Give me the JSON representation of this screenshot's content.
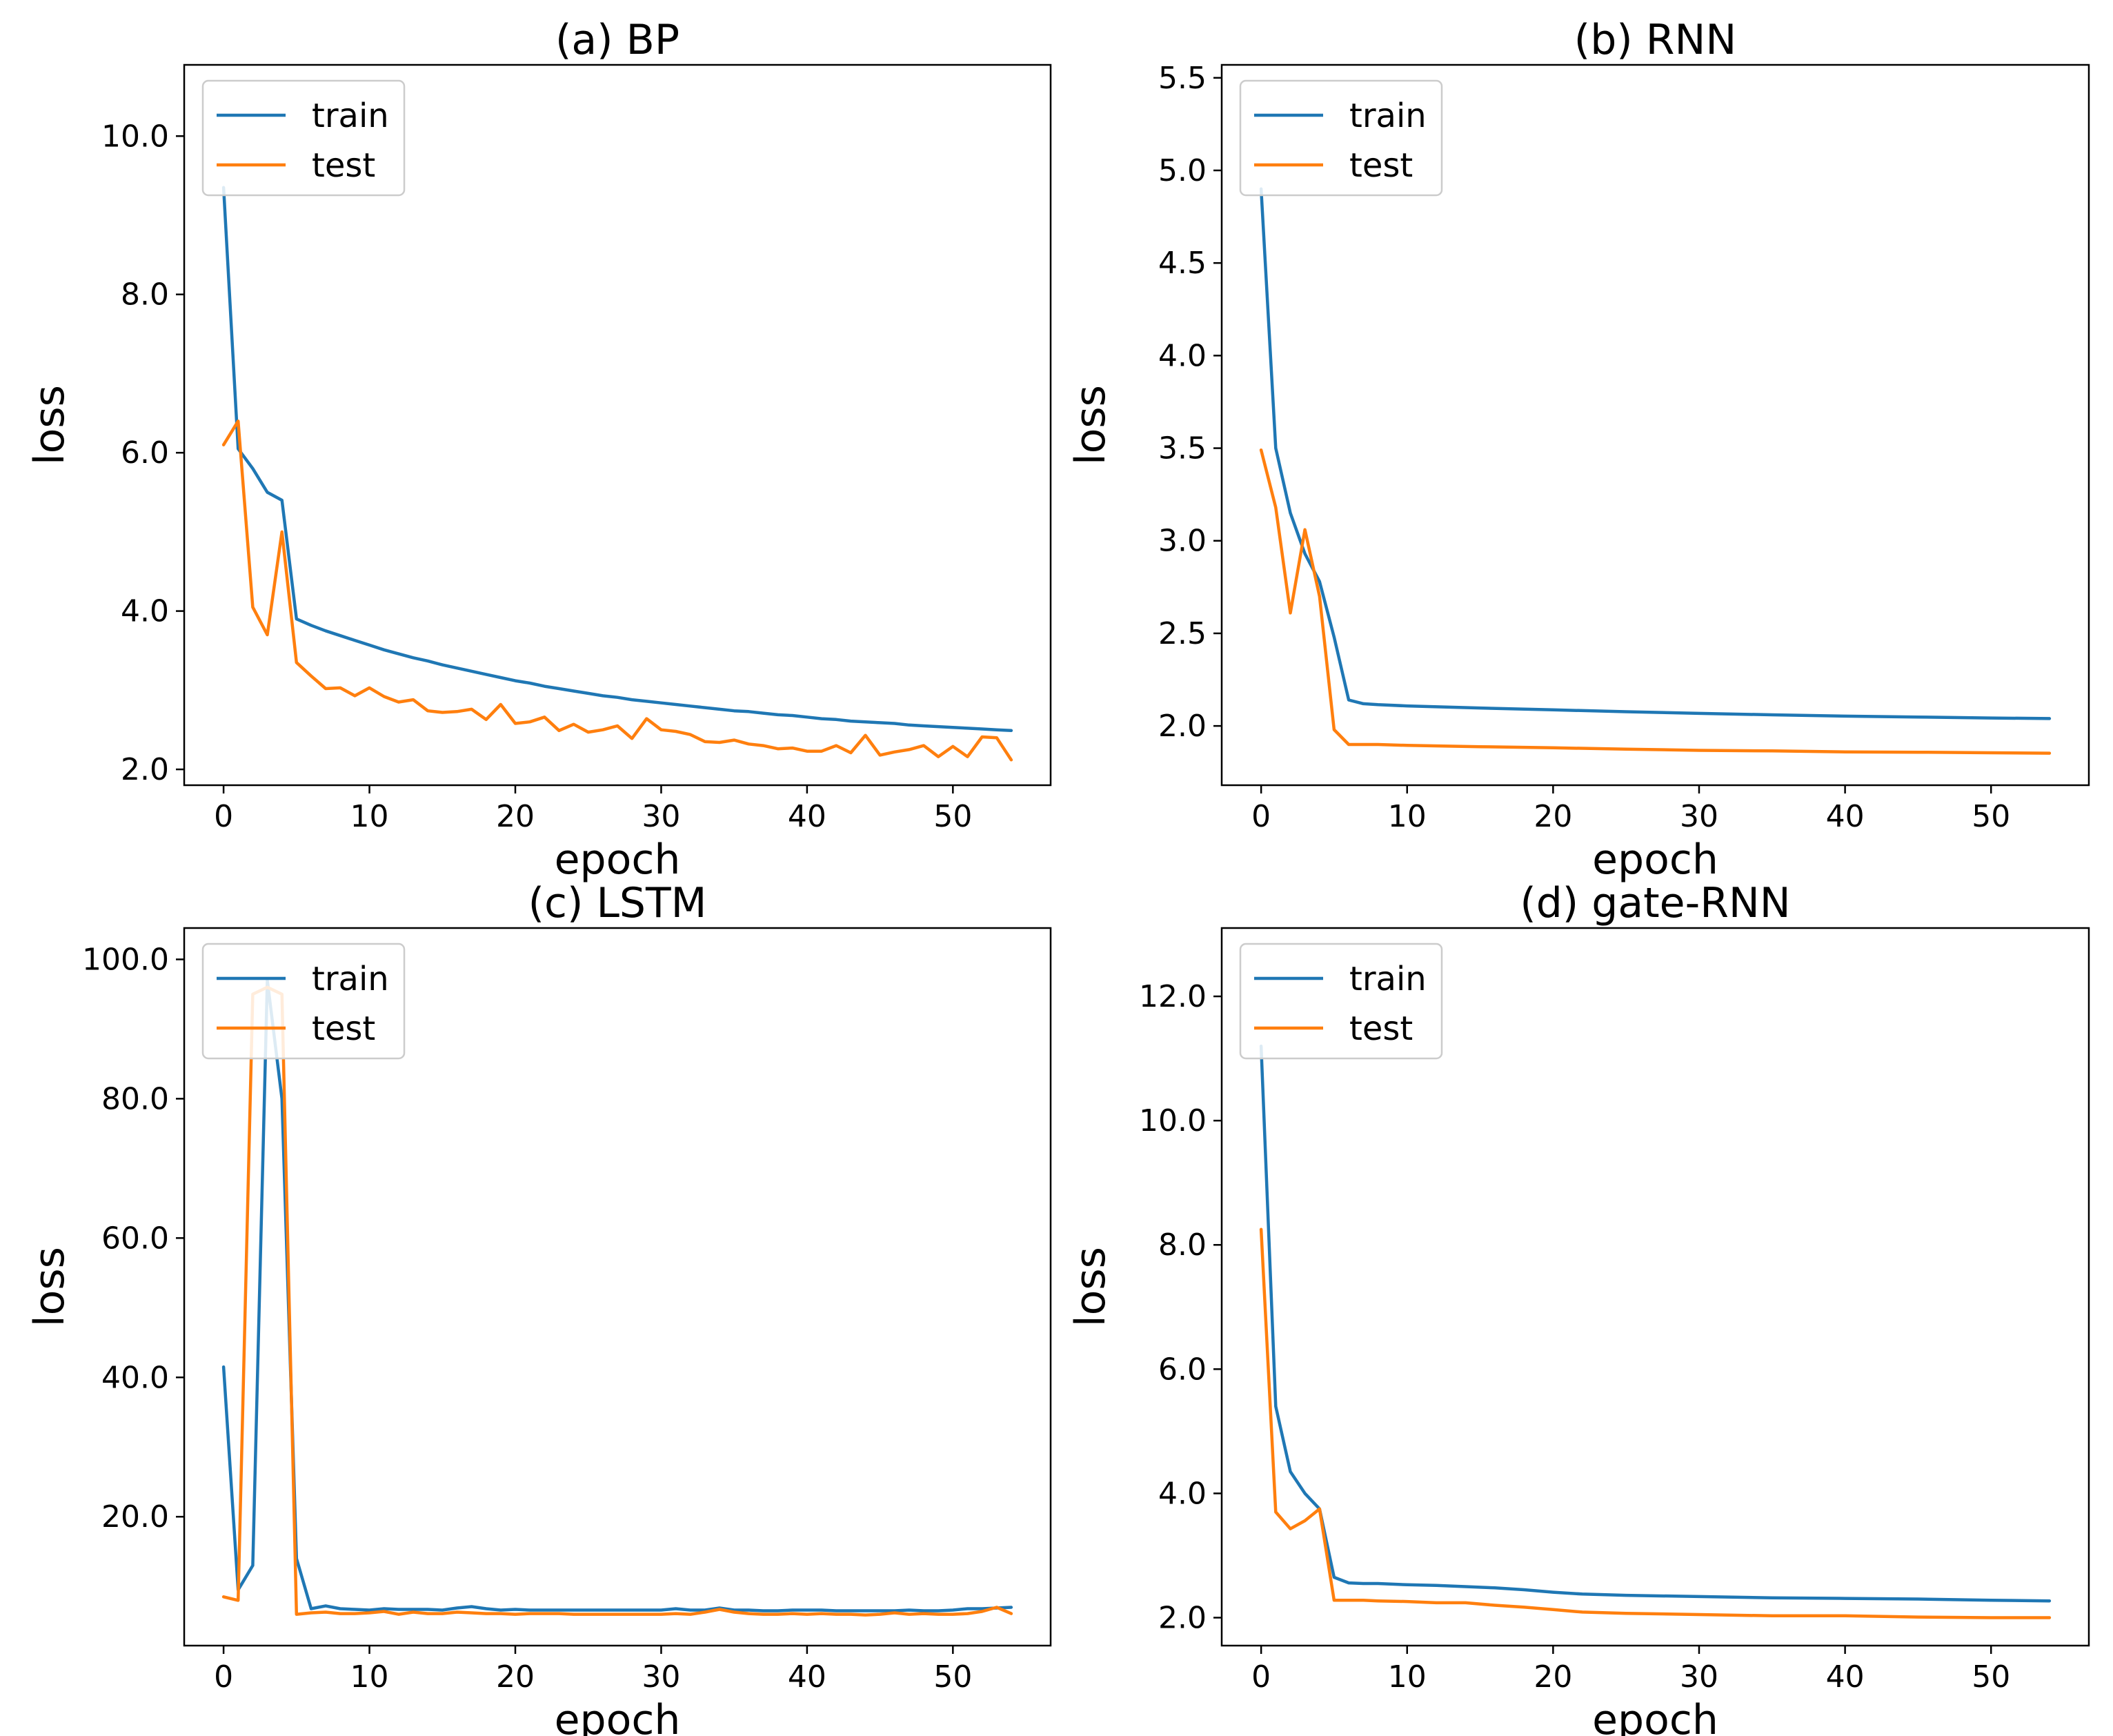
{
  "colors": {
    "train": "#1f77b4",
    "test": "#ff7f0e"
  },
  "chart_data": [
    {
      "type": "line",
      "title": "(a)  BP",
      "xlabel": "epoch",
      "ylabel": "loss",
      "xlim": [
        -2.7,
        56.7
      ],
      "ylim": [
        1.8,
        10.9
      ],
      "xticks": [
        0,
        10,
        20,
        30,
        40,
        50
      ],
      "yticks": [
        2.0,
        4.0,
        6.0,
        8.0,
        10.0
      ],
      "xtick_labels": [
        "0",
        "10",
        "20",
        "30",
        "40",
        "50"
      ],
      "ytick_labels": [
        "2.0",
        "4.0",
        "6.0",
        "8.0",
        "10.0"
      ],
      "legend": [
        "train",
        "test"
      ],
      "series": [
        {
          "name": "train",
          "x": [
            0,
            1,
            2,
            3,
            4,
            5,
            6,
            7,
            8,
            9,
            10,
            11,
            12,
            13,
            14,
            15,
            16,
            17,
            18,
            19,
            20,
            21,
            22,
            23,
            24,
            25,
            26,
            27,
            28,
            29,
            30,
            31,
            32,
            33,
            34,
            35,
            36,
            37,
            38,
            39,
            40,
            41,
            42,
            43,
            44,
            45,
            46,
            47,
            48,
            49,
            50,
            51,
            52,
            53,
            54
          ],
          "values": [
            9.35,
            6.05,
            5.8,
            5.5,
            5.4,
            3.9,
            3.82,
            3.75,
            3.69,
            3.63,
            3.57,
            3.51,
            3.46,
            3.41,
            3.37,
            3.32,
            3.28,
            3.24,
            3.2,
            3.16,
            3.12,
            3.09,
            3.05,
            3.02,
            2.99,
            2.96,
            2.93,
            2.91,
            2.88,
            2.86,
            2.84,
            2.82,
            2.8,
            2.78,
            2.76,
            2.74,
            2.73,
            2.71,
            2.69,
            2.68,
            2.66,
            2.64,
            2.63,
            2.61,
            2.6,
            2.59,
            2.58,
            2.56,
            2.55,
            2.54,
            2.53,
            2.52,
            2.51,
            2.5,
            2.49
          ]
        },
        {
          "name": "test",
          "x": [
            0,
            1,
            2,
            3,
            4,
            5,
            6,
            7,
            8,
            9,
            10,
            11,
            12,
            13,
            14,
            15,
            16,
            17,
            18,
            19,
            20,
            21,
            22,
            23,
            24,
            25,
            26,
            27,
            28,
            29,
            30,
            31,
            32,
            33,
            34,
            35,
            36,
            37,
            38,
            39,
            40,
            41,
            42,
            43,
            44,
            45,
            46,
            47,
            48,
            49,
            50,
            51,
            52,
            53,
            54
          ],
          "values": [
            6.1,
            6.4,
            4.05,
            3.7,
            5.0,
            3.35,
            3.18,
            3.02,
            3.03,
            2.93,
            3.03,
            2.92,
            2.85,
            2.88,
            2.74,
            2.72,
            2.73,
            2.76,
            2.63,
            2.82,
            2.58,
            2.6,
            2.66,
            2.49,
            2.57,
            2.47,
            2.5,
            2.55,
            2.39,
            2.64,
            2.5,
            2.48,
            2.44,
            2.35,
            2.34,
            2.37,
            2.32,
            2.3,
            2.26,
            2.27,
            2.23,
            2.23,
            2.3,
            2.21,
            2.43,
            2.18,
            2.22,
            2.25,
            2.3,
            2.16,
            2.29,
            2.16,
            2.41,
            2.4,
            2.12
          ]
        }
      ]
    },
    {
      "type": "line",
      "title": "(b)  RNN",
      "xlabel": "epoch",
      "ylabel": "loss",
      "xlim": [
        -2.7,
        56.7
      ],
      "ylim": [
        1.68,
        5.57
      ],
      "xticks": [
        0,
        10,
        20,
        30,
        40,
        50
      ],
      "yticks": [
        2.0,
        2.5,
        3.0,
        3.5,
        4.0,
        4.5,
        5.0,
        5.5
      ],
      "xtick_labels": [
        "0",
        "10",
        "20",
        "30",
        "40",
        "50"
      ],
      "ytick_labels": [
        "2.0",
        "2.5",
        "3.0",
        "3.5",
        "4.0",
        "4.5",
        "5.0",
        "5.5"
      ],
      "legend": [
        "train",
        "test"
      ],
      "series": [
        {
          "name": "train",
          "x": [
            0,
            1,
            2,
            3,
            4,
            5,
            6,
            7,
            8,
            10,
            15,
            20,
            25,
            30,
            35,
            40,
            45,
            50,
            54
          ],
          "values": [
            4.9,
            3.5,
            3.15,
            2.93,
            2.78,
            2.48,
            2.14,
            2.12,
            2.115,
            2.108,
            2.097,
            2.087,
            2.077,
            2.068,
            2.06,
            2.053,
            2.048,
            2.043,
            2.04
          ]
        },
        {
          "name": "test",
          "x": [
            0,
            1,
            2,
            3,
            4,
            5,
            6,
            7,
            8,
            10,
            15,
            20,
            25,
            30,
            35,
            40,
            45,
            50,
            54
          ],
          "values": [
            3.49,
            3.18,
            2.61,
            3.06,
            2.7,
            1.98,
            1.9,
            1.9,
            1.9,
            1.895,
            1.888,
            1.882,
            1.875,
            1.868,
            1.865,
            1.86,
            1.858,
            1.855,
            1.853
          ]
        }
      ]
    },
    {
      "type": "line",
      "title": "(c)  LSTM",
      "xlabel": "epoch",
      "ylabel": "loss",
      "xlim": [
        -2.7,
        56.7
      ],
      "ylim": [
        1.5,
        104.5
      ],
      "xticks": [
        0,
        10,
        20,
        30,
        40,
        50
      ],
      "yticks": [
        20.0,
        40.0,
        60.0,
        80.0,
        100.0
      ],
      "xtick_labels": [
        "0",
        "10",
        "20",
        "30",
        "40",
        "50"
      ],
      "ytick_labels": [
        "20.0",
        "40.0",
        "60.0",
        "80.0",
        "100.0"
      ],
      "legend": [
        "train",
        "test"
      ],
      "series": [
        {
          "name": "train",
          "x": [
            0,
            1,
            2,
            3,
            4,
            5,
            6,
            7,
            8,
            9,
            10,
            11,
            12,
            13,
            14,
            15,
            16,
            17,
            18,
            19,
            20,
            21,
            22,
            23,
            24,
            25,
            26,
            27,
            28,
            29,
            30,
            31,
            32,
            33,
            34,
            35,
            36,
            37,
            38,
            39,
            40,
            41,
            42,
            43,
            44,
            45,
            46,
            47,
            48,
            49,
            50,
            51,
            52,
            53,
            54
          ],
          "values": [
            41.5,
            9.5,
            13.0,
            97.0,
            80.0,
            14.0,
            6.8,
            7.2,
            6.8,
            6.7,
            6.6,
            6.8,
            6.7,
            6.7,
            6.7,
            6.6,
            6.9,
            7.1,
            6.8,
            6.6,
            6.7,
            6.6,
            6.6,
            6.6,
            6.6,
            6.6,
            6.6,
            6.6,
            6.6,
            6.6,
            6.6,
            6.8,
            6.6,
            6.6,
            6.9,
            6.6,
            6.6,
            6.5,
            6.5,
            6.6,
            6.6,
            6.6,
            6.5,
            6.5,
            6.5,
            6.5,
            6.5,
            6.6,
            6.5,
            6.5,
            6.6,
            6.8,
            6.8,
            6.9,
            7.0
          ]
        },
        {
          "name": "test",
          "x": [
            0,
            1,
            2,
            3,
            4,
            5,
            6,
            7,
            8,
            9,
            10,
            11,
            12,
            13,
            14,
            15,
            16,
            17,
            18,
            19,
            20,
            21,
            22,
            23,
            24,
            25,
            26,
            27,
            28,
            29,
            30,
            31,
            32,
            33,
            34,
            35,
            36,
            37,
            38,
            39,
            40,
            41,
            42,
            43,
            44,
            45,
            46,
            47,
            48,
            49,
            50,
            51,
            52,
            53,
            54
          ],
          "values": [
            8.5,
            8.0,
            95.0,
            96.0,
            95.0,
            6.0,
            6.2,
            6.3,
            6.1,
            6.1,
            6.2,
            6.4,
            6.0,
            6.3,
            6.1,
            6.1,
            6.3,
            6.2,
            6.1,
            6.1,
            6.0,
            6.1,
            6.1,
            6.1,
            6.0,
            6.0,
            6.0,
            6.0,
            6.0,
            6.0,
            6.0,
            6.1,
            6.0,
            6.3,
            6.7,
            6.3,
            6.1,
            6.0,
            6.0,
            6.1,
            6.0,
            6.1,
            6.0,
            6.0,
            5.9,
            6.0,
            6.2,
            6.0,
            6.1,
            6.0,
            6.0,
            6.1,
            6.4,
            7.0,
            6.1
          ]
        }
      ]
    },
    {
      "type": "line",
      "title": "(d)  gate-RNN",
      "xlabel": "epoch",
      "ylabel": "loss",
      "xlim": [
        -2.7,
        56.7
      ],
      "ylim": [
        1.55,
        13.1
      ],
      "xticks": [
        0,
        10,
        20,
        30,
        40,
        50
      ],
      "yticks": [
        2.0,
        4.0,
        6.0,
        8.0,
        10.0,
        12.0
      ],
      "xtick_labels": [
        "0",
        "10",
        "20",
        "30",
        "40",
        "50"
      ],
      "ytick_labels": [
        "2.0",
        "4.0",
        "6.0",
        "8.0",
        "10.0",
        "12.0"
      ],
      "legend": [
        "train",
        "test"
      ],
      "series": [
        {
          "name": "train",
          "x": [
            0,
            1,
            2,
            3,
            4,
            5,
            6,
            7,
            8,
            10,
            12,
            14,
            16,
            18,
            20,
            22,
            25,
            30,
            35,
            40,
            45,
            50,
            54
          ],
          "values": [
            11.2,
            5.4,
            4.35,
            4.0,
            3.75,
            2.65,
            2.56,
            2.55,
            2.55,
            2.53,
            2.52,
            2.5,
            2.48,
            2.45,
            2.41,
            2.38,
            2.36,
            2.34,
            2.32,
            2.31,
            2.3,
            2.28,
            2.27
          ]
        },
        {
          "name": "test",
          "x": [
            0,
            1,
            2,
            3,
            4,
            5,
            6,
            7,
            8,
            10,
            12,
            14,
            16,
            18,
            20,
            22,
            25,
            30,
            35,
            40,
            45,
            50,
            54
          ],
          "values": [
            8.25,
            3.7,
            3.43,
            3.56,
            3.75,
            2.28,
            2.28,
            2.28,
            2.27,
            2.26,
            2.24,
            2.24,
            2.2,
            2.17,
            2.13,
            2.09,
            2.07,
            2.05,
            2.03,
            2.03,
            2.01,
            2.0,
            2.0
          ]
        }
      ]
    }
  ]
}
